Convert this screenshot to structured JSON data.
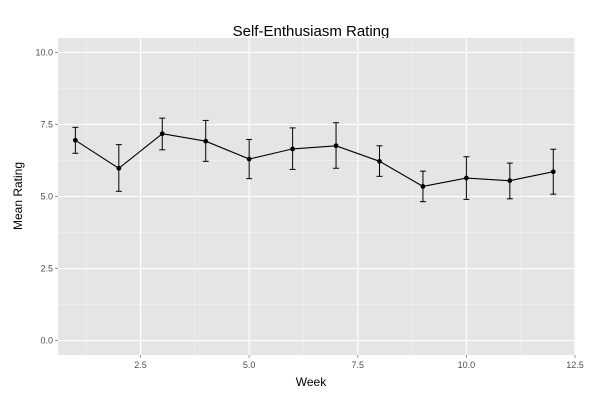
{
  "chart_data": {
    "type": "line",
    "title": "Self-Enthusiasm Rating",
    "xlabel": "Week",
    "ylabel": "Mean Rating",
    "xlim": [
      0.6,
      12.5
    ],
    "ylim": [
      -0.5,
      10.5
    ],
    "xticks": [
      2.5,
      5.0,
      7.5,
      10.0,
      12.5
    ],
    "xtick_labels": [
      "2.5",
      "5.0",
      "7.5",
      "10.0",
      "12.5"
    ],
    "yticks": [
      0.0,
      2.5,
      5.0,
      7.5,
      10.0
    ],
    "ytick_labels": [
      "0.0",
      "2.5",
      "5.0",
      "7.5",
      "10.0"
    ],
    "grid": true,
    "background": "#e5e5e5",
    "grid_color": "#ffffff",
    "line_color": "#000000",
    "series": [
      {
        "x": [
          1,
          2,
          3,
          4,
          5,
          6,
          7,
          8,
          9,
          10,
          11,
          12
        ],
        "values": [
          6.95,
          5.98,
          7.18,
          6.92,
          6.3,
          6.65,
          6.76,
          6.22,
          5.35,
          5.64,
          5.55,
          5.86
        ],
        "error_low": [
          6.5,
          5.18,
          6.62,
          6.22,
          5.62,
          5.94,
          5.98,
          5.7,
          4.82,
          4.9,
          4.92,
          5.08
        ],
        "error_high": [
          7.4,
          6.8,
          7.72,
          7.64,
          6.98,
          7.38,
          7.56,
          6.76,
          5.88,
          6.38,
          6.16,
          6.64
        ]
      }
    ]
  }
}
